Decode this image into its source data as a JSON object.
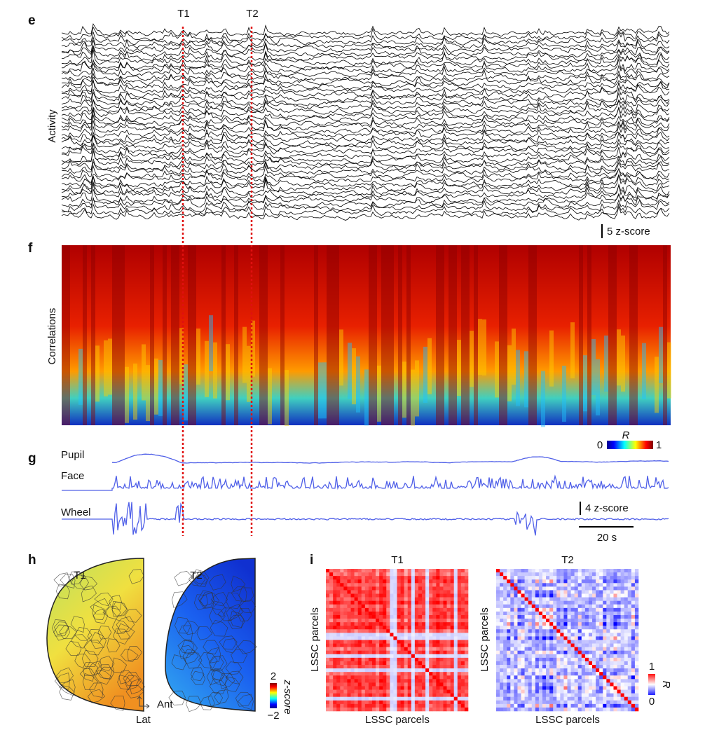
{
  "panels": {
    "e": {
      "label": "e",
      "markers": [
        "T1",
        "T2"
      ],
      "ylabel": "Activity",
      "scale": "5 z-score"
    },
    "f": {
      "label": "f",
      "ylabel": "Correlations",
      "colorbar_title": "R",
      "colorbar_ticks": [
        "0",
        "1"
      ]
    },
    "g": {
      "label": "g",
      "traces": [
        "Pupil",
        "Face",
        "Wheel"
      ],
      "scale_y": "4 z-score",
      "scale_x": "20 s"
    },
    "h": {
      "label": "h",
      "maps": [
        "T1",
        "T2"
      ],
      "axes": [
        "Ant",
        "Lat"
      ],
      "colorbar_title": "z-score",
      "colorbar_ticks": [
        "2",
        "−2"
      ]
    },
    "i": {
      "label": "i",
      "matrices": [
        "T1",
        "T2"
      ],
      "axis_label": "LSSC parcels",
      "colorbar_title": "R",
      "colorbar_ticks": [
        "1",
        "0"
      ]
    }
  }
}
